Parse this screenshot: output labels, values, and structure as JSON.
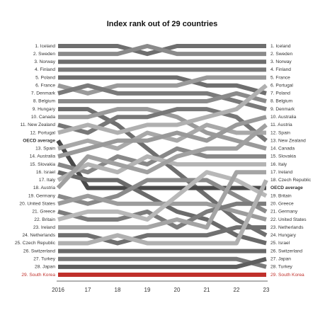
{
  "chart_data": {
    "type": "bump",
    "title": "Index rank out of 29 countries",
    "categories": [
      "2016",
      "17",
      "18",
      "19",
      "20",
      "21",
      "22",
      "23"
    ],
    "ylim": [
      1,
      30
    ],
    "series": [
      {
        "start_label": "1. Iceland",
        "end_label": "1. Iceland",
        "color": "#6e6e6e",
        "values": [
          1,
          1,
          1,
          2,
          1,
          1,
          1,
          1
        ]
      },
      {
        "start_label": "2. Sweden",
        "end_label": "2. Sweden",
        "color": "#8a8a8a",
        "values": [
          2,
          2,
          2,
          1,
          2,
          2,
          2,
          2
        ]
      },
      {
        "start_label": "3. Norway",
        "end_label": "3. Norway",
        "color": "#6e6e6e",
        "values": [
          3,
          3,
          3,
          3,
          3,
          3,
          3,
          3
        ]
      },
      {
        "start_label": "4. Finland",
        "end_label": "4. Finland",
        "color": "#7a7a7a",
        "values": [
          4,
          4,
          4,
          4,
          4,
          4,
          4,
          4
        ]
      },
      {
        "start_label": "5. Poland",
        "end_label": "7. Poland",
        "color": "#6e6e6e",
        "values": [
          5,
          5,
          5,
          5,
          5,
          6,
          6,
          7
        ]
      },
      {
        "start_label": "6. France",
        "end_label": "5. France",
        "color": "#9a9a9a",
        "values": [
          6,
          7,
          6,
          6,
          6,
          5,
          5,
          5
        ]
      },
      {
        "start_label": "7. Denmark",
        "end_label": "9. Denmark",
        "color": "#7a7a7a",
        "values": [
          7,
          6,
          7,
          7,
          7,
          7,
          8,
          9
        ]
      },
      {
        "start_label": "8. Belgium",
        "end_label": "8. Belgium",
        "color": "#8a8a8a",
        "values": [
          8,
          8,
          8,
          8,
          8,
          8,
          7,
          8
        ]
      },
      {
        "start_label": "9. Hungary",
        "end_label": "24. Hungary",
        "color": "#6e6e6e",
        "values": [
          9,
          9,
          11,
          14,
          17,
          20,
          23,
          25
        ]
      },
      {
        "start_label": "10. Canada",
        "end_label": "14. Canada",
        "color": "#9a9a9a",
        "values": [
          10,
          10,
          9,
          9,
          10,
          12,
          13,
          14
        ]
      },
      {
        "start_label": "11. New Zealand",
        "end_label": "13. New Zealand",
        "color": "#777777",
        "values": [
          11,
          12,
          10,
          10,
          9,
          9,
          10,
          13
        ]
      },
      {
        "start_label": "12. Portugal",
        "end_label": "6. Portugal",
        "color": "#b0b0b0",
        "values": [
          12,
          11,
          12,
          11,
          11,
          10,
          9,
          6
        ]
      },
      {
        "start_label": "OECD average",
        "end_label": "OECD average",
        "color": "#4a4a4a",
        "label_weight": "bold",
        "values": [
          13,
          19,
          19,
          19,
          19,
          19,
          19,
          19
        ]
      },
      {
        "start_label": "13. Spain",
        "end_label": "12. Spain",
        "color": "#a8a8a8",
        "values": [
          14,
          13,
          14,
          12,
          13,
          11,
          12,
          12
        ]
      },
      {
        "start_label": "14. Australia",
        "end_label": "10. Australia",
        "color": "#999999",
        "values": [
          15,
          14,
          13,
          13,
          12,
          13,
          11,
          10
        ]
      },
      {
        "start_label": "15. Slovakia",
        "end_label": "15. Slovakia",
        "color": "#888888",
        "values": [
          16,
          17,
          15,
          16,
          14,
          15,
          15,
          15
        ]
      },
      {
        "start_label": "16. Israel",
        "end_label": "25. Israel",
        "color": "#6a6a6a",
        "values": [
          17,
          18,
          18,
          20,
          22,
          23,
          25,
          26
        ]
      },
      {
        "start_label": "17. Italy",
        "end_label": "16. Italy",
        "color": "#b4b4b4",
        "values": [
          18,
          16,
          17,
          15,
          16,
          16,
          16,
          16
        ]
      },
      {
        "start_label": "18. Austria",
        "end_label": "11. Austria",
        "color": "#a0a0a0",
        "values": [
          19,
          15,
          16,
          17,
          15,
          14,
          14,
          11
        ]
      },
      {
        "start_label": "19. Germany",
        "end_label": "21. Germany",
        "color": "#8a8a8a",
        "values": [
          20,
          21,
          20,
          18,
          18,
          18,
          20,
          22
        ]
      },
      {
        "start_label": "20. United States",
        "end_label": "22. United States",
        "color": "#9c9c9c",
        "values": [
          21,
          20,
          21,
          21,
          21,
          21,
          22,
          23
        ]
      },
      {
        "start_label": "21. Greece",
        "end_label": "20. Greece",
        "color": "#7c7c7c",
        "values": [
          22,
          23,
          23,
          22,
          24,
          22,
          21,
          21
        ]
      },
      {
        "start_label": "22. Britain",
        "end_label": "19. Britain",
        "color": "#b8b8b8",
        "values": [
          23,
          22,
          22,
          23,
          20,
          17,
          18,
          20
        ]
      },
      {
        "start_label": "23. Ireland",
        "end_label": "17. Ireland",
        "color": "#a4a4a4",
        "values": [
          24,
          24,
          24,
          24,
          23,
          24,
          17,
          17
        ]
      },
      {
        "start_label": "24. Netherlands",
        "end_label": "23. Netherlands",
        "color": "#707070",
        "values": [
          25,
          25,
          26,
          25,
          25,
          25,
          24,
          24
        ]
      },
      {
        "start_label": "25. Czech Republic",
        "end_label": "18. Czech Republic",
        "color": "#b0b0b0",
        "values": [
          26,
          26,
          25,
          26,
          26,
          26,
          26,
          18
        ]
      },
      {
        "start_label": "26. Switzerland",
        "end_label": "26. Switzerland",
        "color": "#6a6a6a",
        "values": [
          27,
          27,
          27,
          27,
          27,
          27,
          27,
          27
        ]
      },
      {
        "start_label": "27. Turkey",
        "end_label": "28. Turkey",
        "color": "#7a7a7a",
        "values": [
          28,
          28,
          28,
          28,
          28,
          28,
          28,
          29
        ]
      },
      {
        "start_label": "28. Japan",
        "end_label": "27. Japan",
        "color": "#5e5e5e",
        "values": [
          29,
          29,
          29,
          29,
          29,
          29,
          29,
          28
        ]
      },
      {
        "start_label": "29. South Korea",
        "end_label": "29. South Korea",
        "color": "#c0302b",
        "label_color": "#c0302b",
        "values": [
          30,
          30,
          30,
          30,
          30,
          30,
          30,
          30
        ]
      }
    ]
  }
}
